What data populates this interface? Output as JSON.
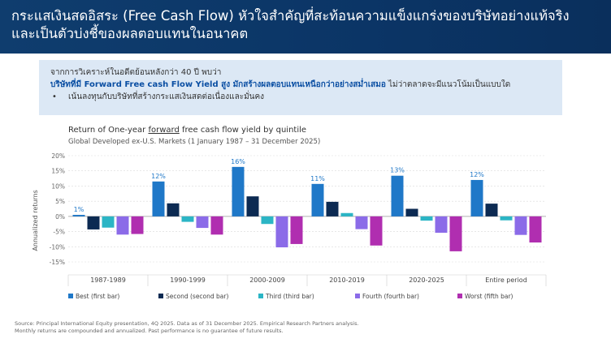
{
  "header": {
    "title_line1": "กระแสเงินสดอิสระ (Free Cash Flow) หัวใจสำคัญที่สะท้อนความแข็งแกร่งของบริษัทอย่างแท้จริง",
    "title_line2": "และเป็นตัวบ่งชี้ของผลตอบแทนในอนาคต"
  },
  "callout": {
    "line1": "จากการวิเคราะห์ในอดีตย้อนหลังกว่า 40 ปี พบว่า",
    "line2_highlight": "บริษัทที่มี Forward Free cash Flow Yield สูง  มักสร้างผลตอบแทนเหนือกว่าอย่างสม่ำเสมอ",
    "line2_rest": " ไม่ว่าตลาดจะมีแนวโน้มเป็นแบบใด",
    "bullet": "•",
    "line3": "เน้นลงทุนกับบริษัทที่สร้างกระแสเงินสดต่อเนื่องและมั่นคง"
  },
  "chart_data": {
    "type": "bar",
    "title_pre": "Return of One-year ",
    "title_underlined": "forward",
    "title_post": " free cash flow yield by quintile",
    "subtitle": "Global Developed ex-U.S. Markets (1 January 1987 – 31 December 2025)",
    "ylabel": "Annualized returns",
    "ylim": [
      -15,
      20
    ],
    "yticks": [
      -15,
      -10,
      -5,
      0,
      5,
      10,
      15,
      20
    ],
    "ytick_labels": [
      "-15%",
      "-10%",
      "-5%",
      "0%",
      "5%",
      "10%",
      "15%",
      "20%"
    ],
    "categories": [
      "1987-1989",
      "1990-1999",
      "2000-2009",
      "2010-2019",
      "2020-2025",
      "Entire period"
    ],
    "data_labels": [
      "1%",
      "12%",
      "16%",
      "11%",
      "13%",
      "12%"
    ],
    "series": [
      {
        "name": "Best (first bar)",
        "color": "#1f78c8",
        "values": [
          0.5,
          11.5,
          16.3,
          10.7,
          13.4,
          12.0
        ]
      },
      {
        "name": "Second (second bar)",
        "color": "#0c2a52",
        "values": [
          -4.3,
          4.3,
          6.6,
          4.8,
          2.5,
          4.2
        ]
      },
      {
        "name": "Third (third bar)",
        "color": "#2bb5c5",
        "values": [
          -3.7,
          -1.8,
          -2.5,
          1.1,
          -1.4,
          -1.3
        ]
      },
      {
        "name": "Fourth (fourth bar)",
        "color": "#8b6be8",
        "values": [
          -6.0,
          -3.8,
          -10.2,
          -4.2,
          -5.4,
          -6.1
        ]
      },
      {
        "name": "Worst (fifth bar)",
        "color": "#b02eb0",
        "values": [
          -5.8,
          -6.0,
          -9.1,
          -9.6,
          -11.5,
          -8.6
        ]
      }
    ]
  },
  "footer": {
    "line1": "Source: Principal International Equity presentation, 4Q 2025. Data as of 31 December 2025. Empirical Research Partners analysis.",
    "line2": "Monthly returns are compounded and annualized. Past performance is no guarantee of future results."
  }
}
